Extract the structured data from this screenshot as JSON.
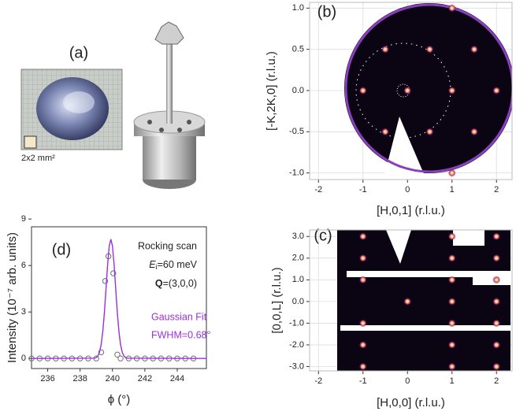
{
  "panel_a": {
    "label": "(a)",
    "scale_label": "2x2 mm²"
  },
  "chart_data": [
    {
      "type": "heatmap",
      "panel_label": "(b)",
      "x_label": "[H,0,1] (r.l.u.)",
      "y_label": "[-K,2K,0] (r.l.u.)",
      "xlim": [
        -2.2,
        2.35
      ],
      "ylim": [
        -1.08,
        1.07
      ],
      "xticks": [
        -2,
        -1,
        0,
        1,
        2
      ],
      "yticks": [
        {
          "value": -1,
          "label": "-1.0"
        },
        -0.5,
        {
          "value": 0,
          "label": "0.0"
        },
        0.5,
        {
          "value": 1,
          "label": "1.0"
        }
      ],
      "grid": true,
      "peaks": {
        "x": [
          1,
          -0.5,
          0.5,
          1.5,
          -1,
          0,
          1,
          2,
          -0.5,
          0.5,
          1.5,
          1
        ],
        "y": [
          1,
          0.5,
          0.5,
          0.5,
          0,
          0,
          0,
          0,
          -0.5,
          -0.5,
          -0.5,
          -1
        ]
      }
    },
    {
      "type": "heatmap",
      "panel_label": "(c)",
      "x_label": "[H,0,0] (r.l.u.)",
      "y_label": "[0,0,L] (r.l.u.)",
      "xlim": [
        -2.2,
        2.35
      ],
      "ylim": [
        -3.2,
        3.3
      ],
      "xticks": [
        -2,
        -1,
        0,
        1,
        2
      ],
      "yticks": [
        {
          "value": -3,
          "label": "-3.0"
        },
        {
          "value": -2,
          "label": "-2.0"
        },
        {
          "value": -1,
          "label": "-1.0"
        },
        {
          "value": 0,
          "label": "0.0"
        },
        {
          "value": 1,
          "label": "1.0"
        },
        {
          "value": 2,
          "label": "2.0"
        },
        {
          "value": 3,
          "label": "3.0"
        }
      ],
      "grid": true,
      "peaks": {
        "x": [
          -1,
          -1,
          -1,
          -1,
          -1,
          -1,
          0,
          1,
          1,
          1,
          1,
          1,
          1,
          1,
          2,
          2,
          2,
          2,
          2,
          2,
          2
        ],
        "y": [
          3,
          2,
          1,
          -1,
          -2,
          -3,
          0,
          3,
          2,
          1,
          0,
          -1,
          -2,
          -3,
          3,
          2,
          1,
          0,
          -1,
          -2,
          -3
        ]
      }
    },
    {
      "type": "line",
      "panel_label": "(d)",
      "x_label": "ϕ (°)",
      "y_label": "Intensity (10⁻⁷ arb. units)",
      "xlim": [
        235,
        245.8
      ],
      "ylim": [
        -0.65,
        8.5
      ],
      "xticks": [
        236,
        238,
        240,
        242,
        244
      ],
      "yticks": [
        0,
        3,
        6,
        9
      ],
      "grid": false,
      "annotations": {
        "scan": "Rocking scan",
        "energy": {
          "symbol": "E",
          "subscript": "i",
          "text": "=60 meV"
        },
        "q": {
          "symbol": "Q",
          "text": "=(3,0,0)"
        },
        "fwhm": "FWHM=0.68°"
      },
      "series": [
        {
          "mode": "markers",
          "color": "#707070",
          "x": [
            235,
            235.5,
            236,
            236.5,
            237,
            237.5,
            238,
            238.5,
            239,
            239.3,
            239.55,
            239.75,
            240.05,
            240.3,
            240.5,
            241,
            241.5,
            242,
            242.5,
            243,
            243.5,
            244,
            244.5,
            245
          ],
          "values": [
            0,
            0,
            0,
            0,
            0,
            0,
            0,
            0,
            0,
            0.4,
            5.0,
            6.6,
            5.5,
            0.25,
            0,
            0,
            0,
            0,
            0,
            0,
            0,
            0,
            0,
            0
          ]
        },
        {
          "mode": "line",
          "name": "Gaussian Fit",
          "color": "#9b30d9",
          "x": [
            235,
            238.9,
            239.0,
            239.1,
            239.2,
            239.3,
            239.4,
            239.5,
            239.6,
            239.7,
            239.8,
            239.9,
            240.0,
            240.1,
            240.2,
            240.3,
            240.4,
            240.5,
            240.6,
            240.7,
            240.8,
            240.9,
            245.8
          ],
          "values": [
            0,
            0.02,
            0.06,
            0.17,
            0.41,
            0.89,
            1.72,
            2.95,
            4.49,
            6.06,
            7.25,
            7.7,
            7.25,
            6.06,
            4.49,
            2.95,
            1.72,
            0.89,
            0.41,
            0.17,
            0.06,
            0.02,
            0
          ]
        }
      ]
    }
  ]
}
